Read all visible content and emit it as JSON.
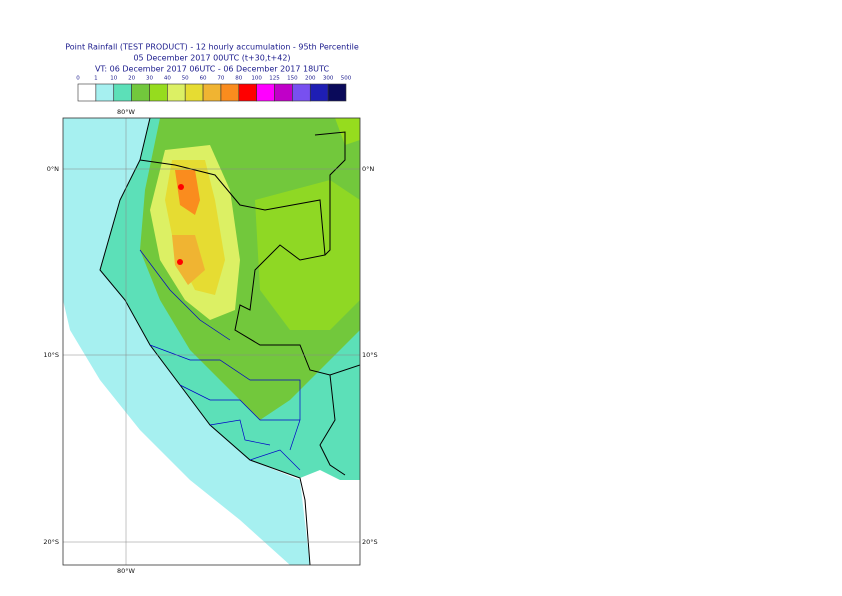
{
  "header": {
    "title": "Point Rainfall (TEST PRODUCT) - 12 hourly accumulation - 95th Percentile",
    "base_time": "05 December 2017 00UTC (t+30,t+42)",
    "valid_time": "VT: 06 December 2017 06UTC - 06 December 2017 18UTC"
  },
  "legend": {
    "labels": [
      "0",
      "1",
      "10",
      "20",
      "30",
      "40",
      "50",
      "60",
      "70",
      "80",
      "100",
      "125",
      "150",
      "200",
      "300",
      "500"
    ],
    "colors": [
      "#ffffff",
      "#a6f0f0",
      "#5ce0b8",
      "#72c83c",
      "#96dc1e",
      "#dcf064",
      "#e6dc32",
      "#f0b432",
      "#fa8c1e",
      "#ff0000",
      "#ff00ff",
      "#c000c8",
      "#7850f0",
      "#1e1eb4",
      "#0a0a5a"
    ]
  },
  "map": {
    "lon_label_top": "80°W",
    "lon_label_bottom": "80°W",
    "lat_labels_left": [
      "0°N",
      "10°S",
      "20°S"
    ],
    "lat_labels_right": [
      "0°N",
      "10°S",
      "20°S"
    ]
  }
}
